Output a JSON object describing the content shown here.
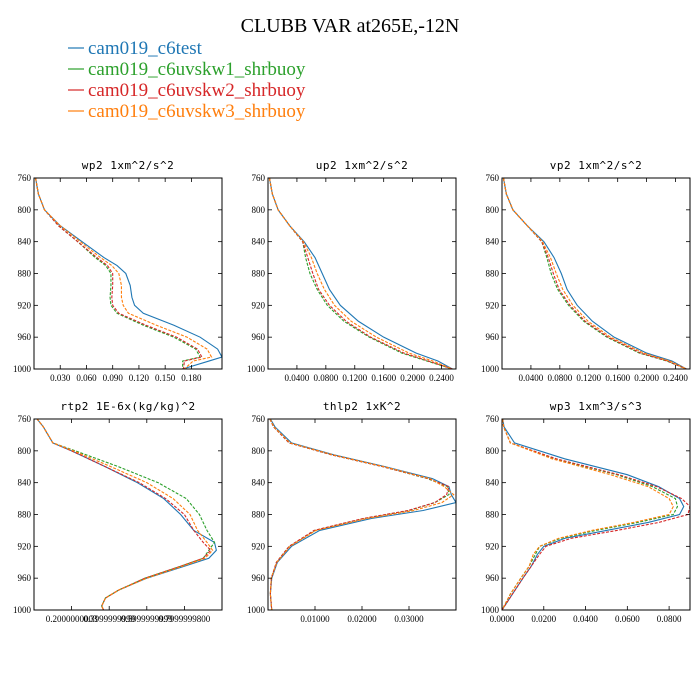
{
  "figure": {
    "title": "CLUBB VAR at265E,-12N",
    "legend": [
      {
        "label": "cam019_c6test",
        "color": "#1f77b4"
      },
      {
        "label": "cam019_c6uvskw1_shrbuoy",
        "color": "#2ca02c"
      },
      {
        "label": "cam019_c6uvskw2_shrbuoy",
        "color": "#d62728"
      },
      {
        "label": "cam019_c6uvskw3_shrbuoy",
        "color": "#ff7f0e"
      }
    ]
  },
  "chart_data": [
    {
      "type": "line",
      "title": "wp2  1xm^2/s^2",
      "ylabel": "",
      "xlim": [
        0,
        0.215
      ],
      "ylim": [
        760,
        1000
      ],
      "y_inverted": true,
      "yticks": [
        760,
        800,
        840,
        880,
        920,
        960,
        1000
      ],
      "xticks": [
        0.03,
        0.06,
        0.09,
        0.12,
        0.15,
        0.18
      ],
      "xtick_labels": [
        "0.030",
        "0.060",
        "0.090",
        "0.120",
        "0.150",
        "0.180"
      ],
      "y": [
        755,
        780,
        800,
        820,
        840,
        860,
        870,
        880,
        895,
        910,
        920,
        930,
        945,
        960,
        975,
        985,
        990,
        1000
      ],
      "series": [
        {
          "name": "cam019_c6test",
          "color": "#1f77b4",
          "values": [
            0.001,
            0.005,
            0.012,
            0.03,
            0.055,
            0.08,
            0.095,
            0.105,
            0.11,
            0.112,
            0.115,
            0.125,
            0.16,
            0.19,
            0.21,
            0.215,
            0.2,
            0.17
          ]
        },
        {
          "name": "cam019_c6uvskw1_shrbuoy",
          "color": "#2ca02c",
          "values": [
            0.001,
            0.005,
            0.012,
            0.028,
            0.05,
            0.07,
            0.082,
            0.088,
            0.088,
            0.087,
            0.088,
            0.095,
            0.125,
            0.16,
            0.185,
            0.19,
            0.17,
            0.17
          ]
        },
        {
          "name": "cam019_c6uvskw2_shrbuoy",
          "color": "#d62728",
          "values": [
            0.001,
            0.005,
            0.012,
            0.028,
            0.05,
            0.072,
            0.084,
            0.09,
            0.09,
            0.089,
            0.09,
            0.097,
            0.128,
            0.163,
            0.187,
            0.192,
            0.172,
            0.171
          ]
        },
        {
          "name": "cam019_c6uvskw3_shrbuoy",
          "color": "#ff7f0e",
          "values": [
            0.001,
            0.005,
            0.012,
            0.03,
            0.053,
            0.076,
            0.089,
            0.097,
            0.1,
            0.1,
            0.102,
            0.108,
            0.14,
            0.175,
            0.198,
            0.203,
            0.182,
            0.172
          ]
        }
      ]
    },
    {
      "type": "line",
      "title": "up2  1xm^2/s^2",
      "ylabel": "",
      "xlim": [
        0,
        0.26
      ],
      "ylim": [
        760,
        1000
      ],
      "y_inverted": true,
      "yticks": [
        760,
        800,
        840,
        880,
        920,
        960,
        1000
      ],
      "xticks": [
        0.04,
        0.08,
        0.12,
        0.16,
        0.2,
        0.24
      ],
      "xtick_labels": [
        "0.0400",
        "0.0800",
        "0.1200",
        "0.1600",
        "0.2000",
        "0.2400"
      ],
      "y": [
        755,
        780,
        800,
        820,
        840,
        860,
        880,
        900,
        920,
        940,
        960,
        980,
        990,
        1000
      ],
      "series": [
        {
          "name": "cam019_c6test",
          "color": "#1f77b4",
          "values": [
            0.001,
            0.006,
            0.014,
            0.03,
            0.05,
            0.065,
            0.075,
            0.085,
            0.1,
            0.125,
            0.16,
            0.205,
            0.235,
            0.255
          ]
        },
        {
          "name": "cam019_c6uvskw1_shrbuoy",
          "color": "#2ca02c",
          "values": [
            0.001,
            0.006,
            0.014,
            0.03,
            0.048,
            0.052,
            0.058,
            0.068,
            0.082,
            0.105,
            0.14,
            0.185,
            0.22,
            0.255
          ]
        },
        {
          "name": "cam019_c6uvskw2_shrbuoy",
          "color": "#d62728",
          "values": [
            0.001,
            0.006,
            0.014,
            0.03,
            0.048,
            0.055,
            0.062,
            0.07,
            0.085,
            0.108,
            0.142,
            0.188,
            0.222,
            0.255
          ]
        },
        {
          "name": "cam019_c6uvskw3_shrbuoy",
          "color": "#ff7f0e",
          "values": [
            0.001,
            0.006,
            0.014,
            0.03,
            0.049,
            0.06,
            0.068,
            0.078,
            0.092,
            0.115,
            0.15,
            0.195,
            0.228,
            0.255
          ]
        }
      ]
    },
    {
      "type": "line",
      "title": "vp2  1xm^2/s^2",
      "ylabel": "",
      "xlim": [
        0,
        0.26
      ],
      "ylim": [
        760,
        1000
      ],
      "y_inverted": true,
      "yticks": [
        760,
        800,
        840,
        880,
        920,
        960,
        1000
      ],
      "xticks": [
        0.04,
        0.08,
        0.12,
        0.16,
        0.2,
        0.24
      ],
      "xtick_labels": [
        "0.0400",
        "0.0800",
        "0.1200",
        "0.1600",
        "0.2000",
        "0.2400"
      ],
      "y": [
        755,
        780,
        800,
        820,
        840,
        860,
        880,
        900,
        920,
        940,
        960,
        980,
        990,
        1000
      ],
      "series": [
        {
          "name": "cam019_c6test",
          "color": "#1f77b4",
          "values": [
            0.001,
            0.006,
            0.015,
            0.035,
            0.058,
            0.072,
            0.082,
            0.09,
            0.104,
            0.125,
            0.155,
            0.2,
            0.235,
            0.255
          ]
        },
        {
          "name": "cam019_c6uvskw1_shrbuoy",
          "color": "#2ca02c",
          "values": [
            0.001,
            0.006,
            0.015,
            0.035,
            0.055,
            0.062,
            0.068,
            0.077,
            0.092,
            0.113,
            0.145,
            0.19,
            0.228,
            0.255
          ]
        },
        {
          "name": "cam019_c6uvskw2_shrbuoy",
          "color": "#d62728",
          "values": [
            0.001,
            0.006,
            0.015,
            0.035,
            0.055,
            0.064,
            0.071,
            0.079,
            0.094,
            0.115,
            0.147,
            0.192,
            0.229,
            0.255
          ]
        },
        {
          "name": "cam019_c6uvskw3_shrbuoy",
          "color": "#ff7f0e",
          "values": [
            0.001,
            0.006,
            0.015,
            0.035,
            0.056,
            0.067,
            0.075,
            0.084,
            0.098,
            0.119,
            0.15,
            0.196,
            0.232,
            0.255
          ]
        }
      ]
    },
    {
      "type": "line",
      "title": "rtp2  1E-6x(kg/kg)^2",
      "ylabel": "",
      "xlim": [
        0,
        1.0
      ],
      "ylim": [
        760,
        1000
      ],
      "y_inverted": true,
      "yticks": [
        760,
        800,
        840,
        880,
        920,
        960,
        1000
      ],
      "xticks": [
        0.2,
        0.4,
        0.6,
        0.8
      ],
      "xtick_labels": [
        "0.2000000003",
        "0.3999999999",
        "0.5999999999",
        "0.7999999800"
      ],
      "y": [
        755,
        770,
        790,
        800,
        820,
        840,
        860,
        880,
        900,
        915,
        925,
        935,
        945,
        960,
        975,
        985,
        995,
        1000
      ],
      "series": [
        {
          "name": "cam019_c6test",
          "color": "#1f77b4",
          "values": [
            0.0,
            0.05,
            0.1,
            0.2,
            0.38,
            0.55,
            0.69,
            0.78,
            0.85,
            0.96,
            0.97,
            0.93,
            0.8,
            0.6,
            0.45,
            0.38,
            0.36,
            0.37
          ]
        },
        {
          "name": "cam019_c6uvskw1_shrbuoy",
          "color": "#2ca02c",
          "values": [
            0.0,
            0.05,
            0.1,
            0.22,
            0.45,
            0.66,
            0.81,
            0.88,
            0.92,
            0.96,
            0.93,
            0.9,
            0.78,
            0.59,
            0.45,
            0.38,
            0.36,
            0.37
          ]
        },
        {
          "name": "cam019_c6uvskw2_shrbuoy",
          "color": "#d62728",
          "values": [
            0.0,
            0.05,
            0.1,
            0.2,
            0.38,
            0.56,
            0.7,
            0.8,
            0.85,
            0.9,
            0.94,
            0.9,
            0.78,
            0.59,
            0.45,
            0.38,
            0.36,
            0.37
          ]
        },
        {
          "name": "cam019_c6uvskw3_shrbuoy",
          "color": "#ff7f0e",
          "values": [
            0.0,
            0.05,
            0.1,
            0.21,
            0.41,
            0.6,
            0.74,
            0.83,
            0.87,
            0.92,
            0.95,
            0.91,
            0.79,
            0.6,
            0.45,
            0.38,
            0.36,
            0.37
          ]
        }
      ]
    },
    {
      "type": "line",
      "title": "thlp2  1xK^2",
      "ylabel": "",
      "xlim": [
        0,
        0.04
      ],
      "ylim": [
        760,
        1000
      ],
      "y_inverted": true,
      "yticks": [
        760,
        800,
        840,
        880,
        920,
        960,
        1000
      ],
      "xticks": [
        0.01,
        0.02,
        0.03
      ],
      "xtick_labels": [
        "0.01000",
        "0.02000",
        "0.03000"
      ],
      "y": [
        755,
        770,
        790,
        805,
        820,
        835,
        845,
        855,
        865,
        875,
        885,
        900,
        920,
        940,
        960,
        980,
        1000
      ],
      "series": [
        {
          "name": "cam019_c6test",
          "color": "#1f77b4",
          "values": [
            0.0,
            0.0015,
            0.005,
            0.014,
            0.025,
            0.035,
            0.0385,
            0.039,
            0.04,
            0.033,
            0.022,
            0.011,
            0.005,
            0.002,
            0.0008,
            0.0005,
            0.0008
          ]
        },
        {
          "name": "cam019_c6uvskw1_shrbuoy",
          "color": "#2ca02c",
          "values": [
            0.0,
            0.0012,
            0.0045,
            0.0135,
            0.0245,
            0.034,
            0.0382,
            0.0385,
            0.0355,
            0.03,
            0.0205,
            0.01,
            0.0045,
            0.0018,
            0.0007,
            0.0005,
            0.0008
          ]
        },
        {
          "name": "cam019_c6uvskw2_shrbuoy",
          "color": "#d62728",
          "values": [
            0.0,
            0.0012,
            0.0045,
            0.0135,
            0.0245,
            0.0342,
            0.0385,
            0.038,
            0.0355,
            0.0298,
            0.0202,
            0.0098,
            0.0045,
            0.0018,
            0.0007,
            0.0005,
            0.0008
          ]
        },
        {
          "name": "cam019_c6uvskw3_shrbuoy",
          "color": "#ff7f0e",
          "values": [
            0.0,
            0.0013,
            0.0047,
            0.0138,
            0.0248,
            0.0345,
            0.0375,
            0.0395,
            0.037,
            0.031,
            0.021,
            0.0102,
            0.0047,
            0.0019,
            0.0007,
            0.0005,
            0.0008
          ]
        }
      ]
    },
    {
      "type": "line",
      "title": "wp3  1xm^3/s^3",
      "ylabel": "",
      "xlim": [
        0,
        0.09
      ],
      "ylim": [
        760,
        1000
      ],
      "y_inverted": true,
      "yticks": [
        760,
        800,
        840,
        880,
        920,
        960,
        1000
      ],
      "xticks": [
        0.0,
        0.02,
        0.04,
        0.06,
        0.08
      ],
      "xtick_labels": [
        "0.0000",
        "0.0200",
        "0.0400",
        "0.0600",
        "0.0800"
      ],
      "y": [
        755,
        770,
        790,
        810,
        830,
        845,
        860,
        870,
        880,
        890,
        900,
        910,
        920,
        930,
        945,
        960,
        980,
        1000
      ],
      "series": [
        {
          "name": "cam019_c6test",
          "color": "#1f77b4",
          "values": [
            0.0,
            0.001,
            0.006,
            0.03,
            0.06,
            0.075,
            0.085,
            0.087,
            0.085,
            0.07,
            0.05,
            0.03,
            0.02,
            0.017,
            0.014,
            0.01,
            0.005,
            0.0
          ]
        },
        {
          "name": "cam019_c6uvskw1_shrbuoy",
          "color": "#2ca02c",
          "values": [
            0.0,
            0.0008,
            0.004,
            0.025,
            0.055,
            0.072,
            0.083,
            0.084,
            0.082,
            0.065,
            0.045,
            0.028,
            0.018,
            0.016,
            0.013,
            0.009,
            0.004,
            0.0
          ]
        },
        {
          "name": "cam019_c6uvskw2_shrbuoy",
          "color": "#d62728",
          "values": [
            0.0,
            0.0008,
            0.004,
            0.026,
            0.056,
            0.074,
            0.086,
            0.09,
            0.089,
            0.075,
            0.055,
            0.033,
            0.021,
            0.018,
            0.014,
            0.01,
            0.005,
            0.0
          ]
        },
        {
          "name": "cam019_c6uvskw3_shrbuoy",
          "color": "#ff7f0e",
          "values": [
            0.0,
            0.0008,
            0.004,
            0.024,
            0.052,
            0.07,
            0.08,
            0.082,
            0.08,
            0.063,
            0.043,
            0.027,
            0.018,
            0.015,
            0.013,
            0.009,
            0.004,
            0.0
          ]
        }
      ]
    }
  ]
}
